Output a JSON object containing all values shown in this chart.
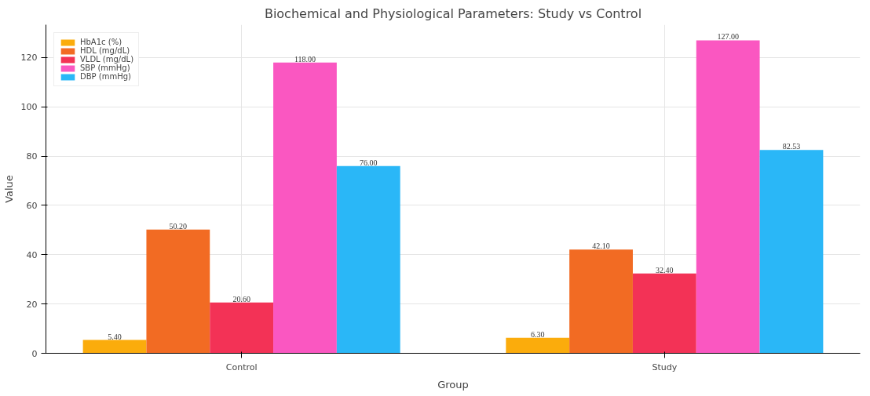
{
  "chart_data": {
    "type": "bar",
    "title": "Biochemical and Physiological Parameters: Study vs Control",
    "xlabel": "Group",
    "ylabel": "Value",
    "categories": [
      "Control",
      "Study"
    ],
    "series": [
      {
        "name": "HbA1c (%)",
        "color": "#fbac0c",
        "values": [
          5.4,
          6.3
        ],
        "value_labels": [
          "5.40",
          "6.30"
        ]
      },
      {
        "name": "HDL (mg/dL)",
        "color": "#f26b23",
        "values": [
          50.2,
          42.1
        ],
        "value_labels": [
          "50.20",
          "42.10"
        ]
      },
      {
        "name": "VLDL (mg/dL)",
        "color": "#f33256",
        "values": [
          20.6,
          32.4
        ],
        "value_labels": [
          "20.60",
          "32.40"
        ]
      },
      {
        "name": "SBP (mmHg)",
        "color": "#fa57c1",
        "values": [
          118,
          127
        ],
        "value_labels": [
          "118.00",
          "127.00"
        ]
      },
      {
        "name": "DBP (mmHg)",
        "color": "#2ab7f7",
        "values": [
          76,
          82.53
        ],
        "value_labels": [
          "76.00",
          "82.53"
        ]
      }
    ],
    "ylim": [
      0,
      133.35
    ],
    "yticks": [
      0,
      20,
      40,
      60,
      80,
      100,
      120
    ],
    "grid": true,
    "legend": "top left"
  }
}
